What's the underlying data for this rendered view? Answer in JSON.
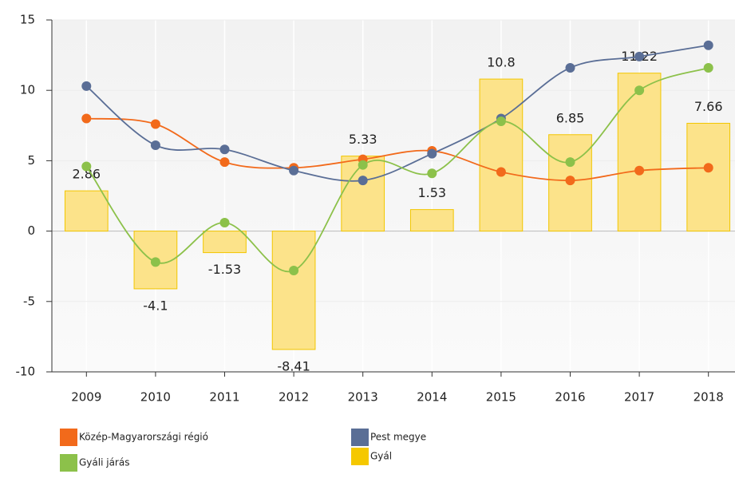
{
  "chart_data": {
    "type": "bar",
    "categories": [
      "2009",
      "2010",
      "2011",
      "2012",
      "2013",
      "2014",
      "2015",
      "2016",
      "2017",
      "2018"
    ],
    "series": [
      {
        "name": "Gyál",
        "type": "bar",
        "color": "#fce38a",
        "values": [
          2.86,
          -4.1,
          -1.53,
          -8.41,
          5.33,
          1.53,
          10.8,
          6.85,
          11.22,
          7.66
        ]
      },
      {
        "name": "Közép-Magyarországi régió",
        "type": "line",
        "color": "#f26a1b",
        "values": [
          8.0,
          7.6,
          4.9,
          4.5,
          5.1,
          5.7,
          4.2,
          3.6,
          4.3,
          4.5
        ]
      },
      {
        "name": "Pest megye",
        "type": "line",
        "color": "#5a6e96",
        "values": [
          10.3,
          6.1,
          5.8,
          4.3,
          3.6,
          5.5,
          8.0,
          11.6,
          12.4,
          13.2
        ]
      },
      {
        "name": "Gyáli járás",
        "type": "line",
        "color": "#8cc14a",
        "values": [
          4.6,
          -2.2,
          0.6,
          -2.8,
          4.7,
          4.1,
          7.8,
          4.9,
          10.0,
          11.6
        ]
      }
    ],
    "ylim": [
      -10,
      15
    ],
    "yticks": [
      15,
      10,
      5,
      0,
      -5,
      -10
    ],
    "grid": true
  }
}
